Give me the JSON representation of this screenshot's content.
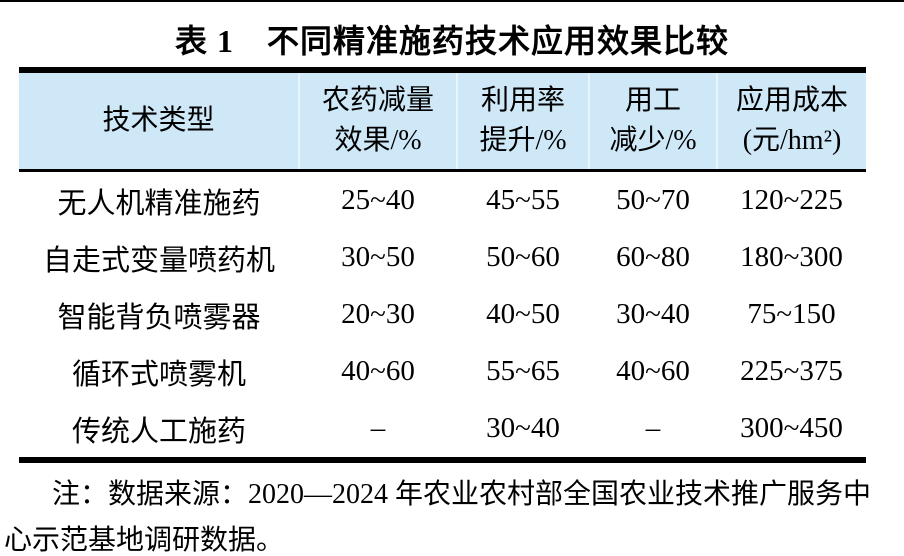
{
  "title": "表 1　不同精准施药技术应用效果比较",
  "table": {
    "headers": [
      {
        "line1": "技术类型",
        "line2": ""
      },
      {
        "line1": "农药减量",
        "line2": "效果/%"
      },
      {
        "line1": "利用率",
        "line2": "提升/%"
      },
      {
        "line1": "用工",
        "line2": "减少/%"
      },
      {
        "line1": "应用成本",
        "line2": "(元/hm²)"
      }
    ],
    "rows": [
      {
        "cells": [
          "无人机精准施药",
          "25~40",
          "45~55",
          "50~70",
          "120~225"
        ]
      },
      {
        "cells": [
          "自走式变量喷药机",
          "30~50",
          "50~60",
          "60~80",
          "180~300"
        ]
      },
      {
        "cells": [
          "智能背负喷雾器",
          "20~30",
          "40~50",
          "30~40",
          "75~150"
        ]
      },
      {
        "cells": [
          "循环式喷雾机",
          "40~60",
          "55~65",
          "40~60",
          "225~375"
        ]
      },
      {
        "cells": [
          "传统人工施药",
          "–",
          "30~40",
          "–",
          "300~450"
        ]
      }
    ]
  },
  "note": {
    "lines": [
      "注：数据来源：2020—2024 年农业农村部全国农业技术推广服务中",
      "心示范基地调研数据。"
    ]
  },
  "colors": {
    "header_background": "#cfe8f8",
    "rule": "#000000",
    "text": "#000000"
  }
}
